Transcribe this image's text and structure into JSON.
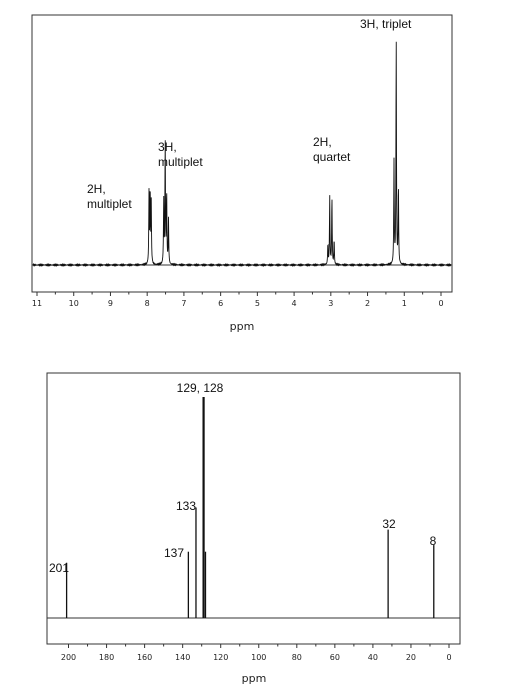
{
  "chart_data": [
    {
      "type": "line",
      "xlabel": "ppm",
      "xlim": [
        11,
        0
      ],
      "x_ticks": [
        11,
        10,
        9,
        8,
        7,
        6,
        5,
        4,
        3,
        2,
        1,
        0
      ],
      "x_reversed": true,
      "peaks": [
        {
          "ppm": 7.95,
          "height": 0.31
        },
        {
          "ppm": 7.92,
          "height": 0.33
        },
        {
          "ppm": 7.89,
          "height": 0.27
        },
        {
          "ppm": 7.55,
          "height": 0.28
        },
        {
          "ppm": 7.51,
          "height": 0.55
        },
        {
          "ppm": 7.47,
          "height": 0.32
        },
        {
          "ppm": 7.42,
          "height": 0.2
        },
        {
          "ppm": 3.08,
          "height": 0.09
        },
        {
          "ppm": 3.03,
          "height": 0.3
        },
        {
          "ppm": 2.97,
          "height": 0.3
        },
        {
          "ppm": 2.91,
          "height": 0.11
        },
        {
          "ppm": 1.28,
          "height": 0.45
        },
        {
          "ppm": 1.22,
          "height": 1.0
        },
        {
          "ppm": 1.16,
          "height": 0.35
        }
      ],
      "annotations": [
        {
          "lines": [
            "3H, triplet"
          ],
          "ppm": 1.22
        },
        {
          "lines": [
            "2H,",
            "quartet"
          ],
          "ppm": 3.0
        },
        {
          "lines": [
            "3H,",
            "multiplet"
          ],
          "ppm": 7.5
        },
        {
          "lines": [
            "2H,",
            "multiplet"
          ],
          "ppm": 7.92
        }
      ]
    },
    {
      "type": "bar",
      "xlabel": "ppm",
      "xlim": [
        205,
        0
      ],
      "x_ticks": [
        200,
        180,
        160,
        140,
        120,
        100,
        80,
        60,
        40,
        20,
        0
      ],
      "x_reversed": true,
      "peaks": [
        {
          "ppm": 201,
          "height": 0.25
        },
        {
          "ppm": 137,
          "height": 0.3
        },
        {
          "ppm": 133,
          "height": 0.5
        },
        {
          "ppm": 129,
          "height": 1.0
        },
        {
          "ppm": 128,
          "height": 0.3
        },
        {
          "ppm": 32,
          "height": 0.4
        },
        {
          "ppm": 8,
          "height": 0.33
        }
      ],
      "annotations": [
        {
          "lines": [
            "129, 128"
          ],
          "ppm": 128.5
        },
        {
          "lines": [
            "133"
          ],
          "ppm": 133
        },
        {
          "lines": [
            "137"
          ],
          "ppm": 137
        },
        {
          "lines": [
            "201"
          ],
          "ppm": 201
        },
        {
          "lines": [
            "32"
          ],
          "ppm": 32
        },
        {
          "lines": [
            "8"
          ],
          "ppm": 8
        }
      ]
    }
  ]
}
